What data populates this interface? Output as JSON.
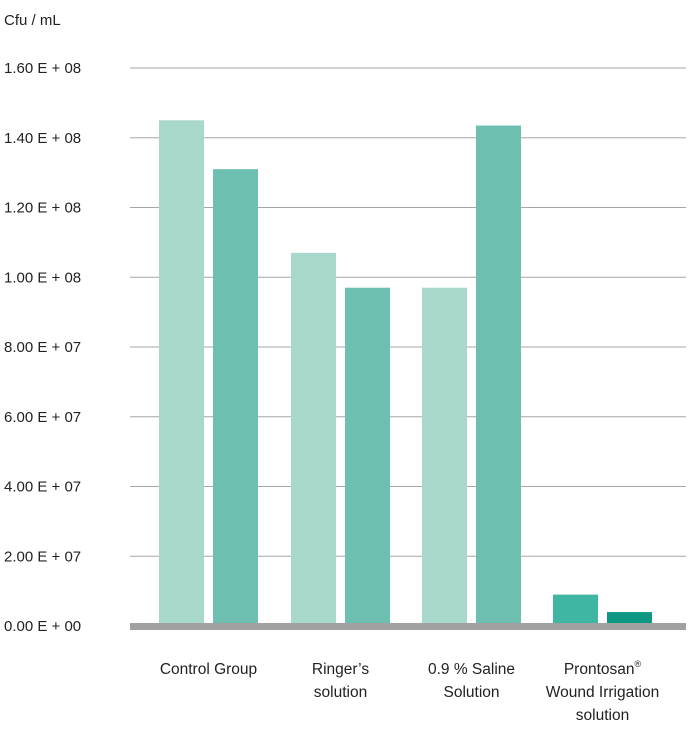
{
  "chart_data": {
    "type": "bar",
    "ylabel": "Cfu / mL",
    "ylim": [
      0,
      160000000
    ],
    "y_ticks": [
      {
        "value": 0,
        "label": "0.00 E + 00"
      },
      {
        "value": 20000000,
        "label": "2.00 E + 07"
      },
      {
        "value": 40000000,
        "label": "4.00 E + 07"
      },
      {
        "value": 60000000,
        "label": "6.00 E + 07"
      },
      {
        "value": 80000000,
        "label": "8.00 E + 07"
      },
      {
        "value": 100000000,
        "label": "1.00 E + 08"
      },
      {
        "value": 120000000,
        "label": "1.20 E + 08"
      },
      {
        "value": 140000000,
        "label": "1.40 E + 08"
      },
      {
        "value": 160000000,
        "label": "1.60 E + 08"
      }
    ],
    "grid": true,
    "legend": "none",
    "categories": [
      {
        "lines": [
          "Control Group"
        ],
        "sup": ""
      },
      {
        "lines": [
          "Ringer’s",
          "solution"
        ],
        "sup": ""
      },
      {
        "lines": [
          "0.9 % Saline",
          "Solution"
        ],
        "sup": ""
      },
      {
        "lines": [
          "Prontosan",
          "Wound Irrigation",
          "solution"
        ],
        "sup": "®"
      }
    ],
    "series": [
      {
        "values": [
          145000000,
          107000000,
          97000000,
          9000000
        ],
        "colors": [
          "#a8d8cc",
          "#a8d8cc",
          "#a8d8cc",
          "#3fb5a3"
        ]
      },
      {
        "values": [
          131000000,
          97000000,
          143500000,
          4000000
        ],
        "colors": [
          "#6dbfb0",
          "#6dbfb0",
          "#6dbfb0",
          "#0e9783"
        ]
      }
    ],
    "colors": {
      "grid": "#a6a6a6",
      "baseline": "#a1a1a1"
    }
  }
}
